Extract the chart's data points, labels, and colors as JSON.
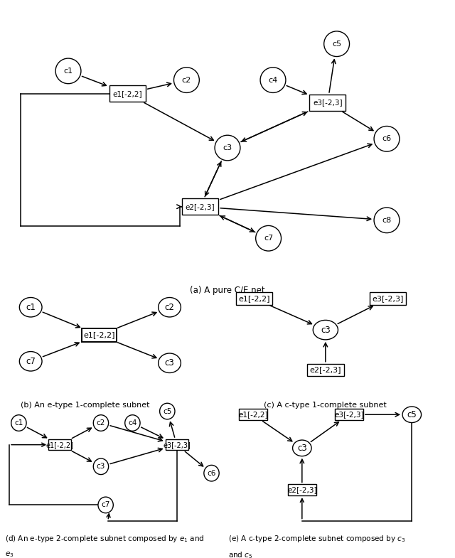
{
  "fig_width": 6.4,
  "fig_height": 7.85,
  "bg_color": "#ffffff",
  "caption_a": "(a) A pure C/E net",
  "caption_b": "(b) An e-type 1-complete subnet",
  "caption_c": "(c) A c-type 1-complete subnet",
  "caption_d_l1": "(d) An e-type 2-complete subnet composed by $e_1$ and",
  "caption_d_l2": "$e_3$",
  "caption_e_l1": "(e) A c-type 2-complete subnet composed by $c_3$",
  "caption_e_l2": "and $c_5$"
}
